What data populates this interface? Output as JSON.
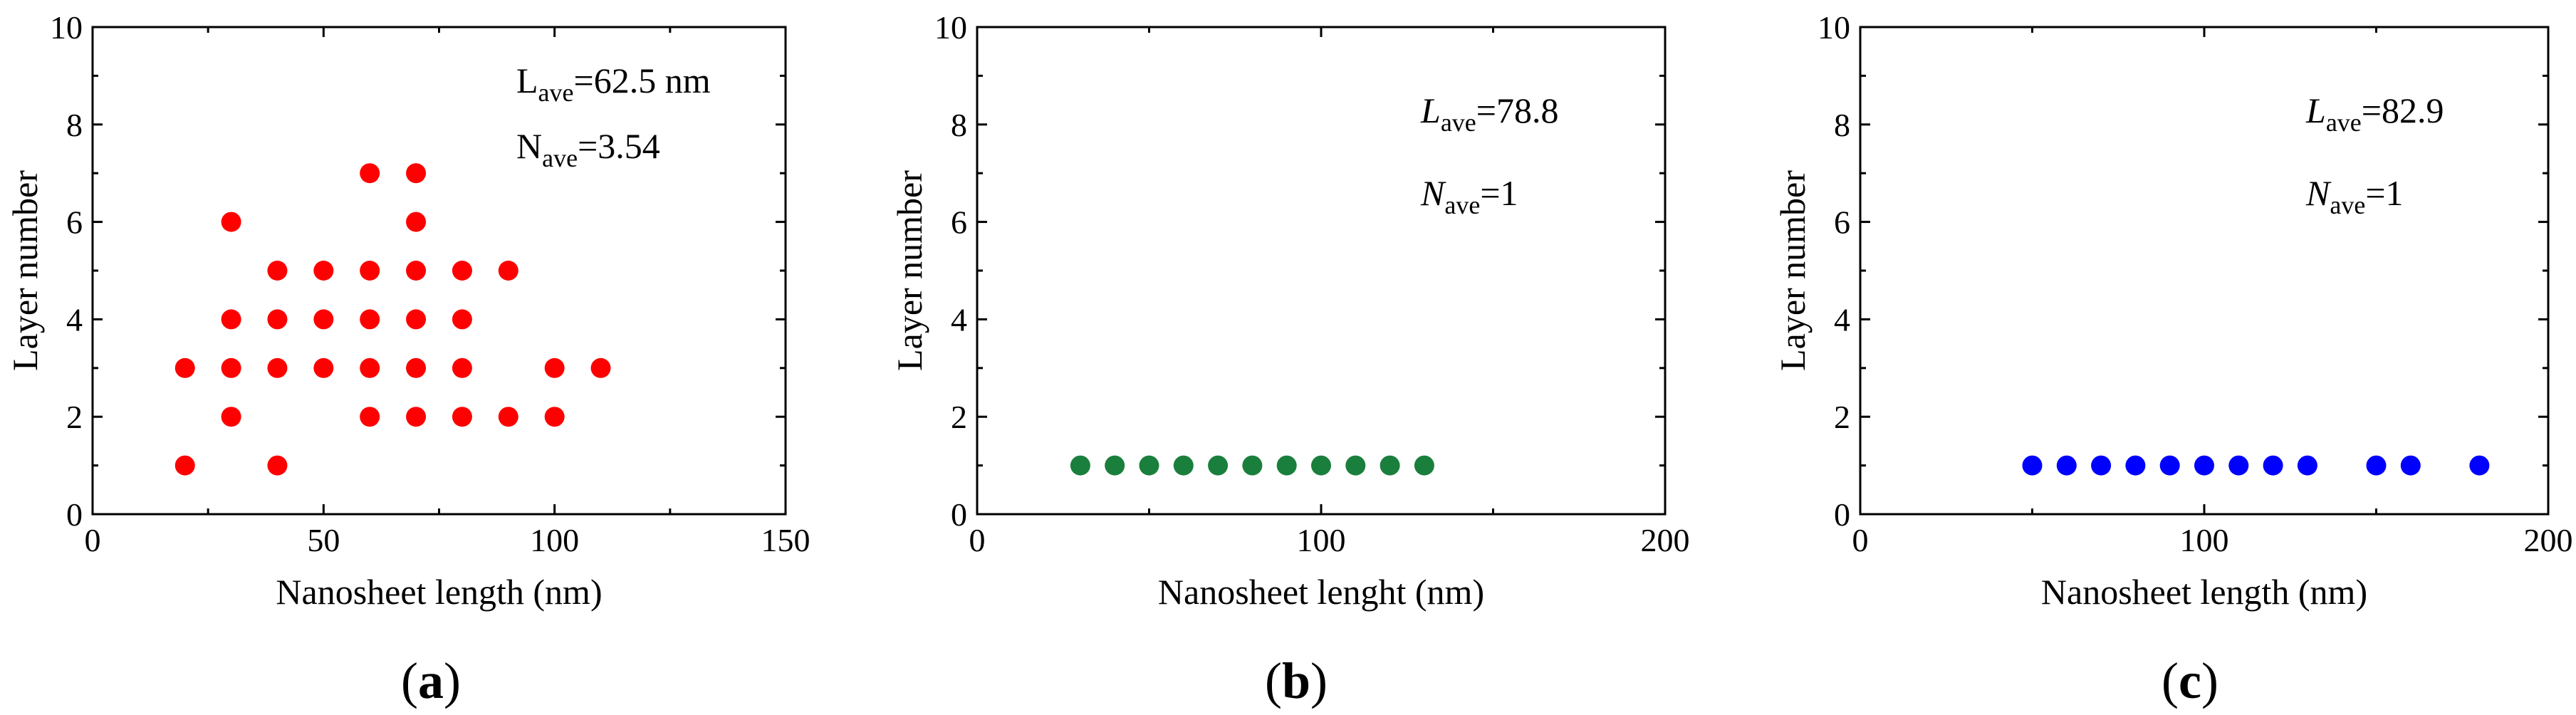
{
  "chart_data": [
    {
      "type": "scatter",
      "panel_label": "a",
      "xlabel": "Nanosheet length (nm)",
      "ylabel": "Layer number",
      "xlim": [
        0,
        150
      ],
      "ylim": [
        0,
        10
      ],
      "xticks": [
        0,
        50,
        100,
        150
      ],
      "yticks": [
        0,
        2,
        4,
        6,
        8,
        10
      ],
      "color": "#ff0000",
      "points": [
        [
          20,
          1
        ],
        [
          20,
          3
        ],
        [
          30,
          2
        ],
        [
          30,
          3
        ],
        [
          30,
          4
        ],
        [
          30,
          6
        ],
        [
          40,
          1
        ],
        [
          40,
          3
        ],
        [
          40,
          4
        ],
        [
          40,
          5
        ],
        [
          50,
          3
        ],
        [
          50,
          4
        ],
        [
          50,
          5
        ],
        [
          60,
          2
        ],
        [
          60,
          3
        ],
        [
          60,
          4
        ],
        [
          60,
          5
        ],
        [
          60,
          7
        ],
        [
          70,
          2
        ],
        [
          70,
          3
        ],
        [
          70,
          4
        ],
        [
          70,
          5
        ],
        [
          70,
          6
        ],
        [
          70,
          7
        ],
        [
          80,
          2
        ],
        [
          80,
          3
        ],
        [
          80,
          4
        ],
        [
          80,
          5
        ],
        [
          90,
          2
        ],
        [
          90,
          5
        ],
        [
          100,
          2
        ],
        [
          100,
          3
        ],
        [
          110,
          3
        ]
      ],
      "annotations": [
        {
          "symbol": "L",
          "sub": "ave",
          "value": "=62.5 nm",
          "italic": false
        },
        {
          "symbol": "N",
          "sub": "ave",
          "value": "=3.54",
          "italic": false
        }
      ]
    },
    {
      "type": "scatter",
      "panel_label": "b",
      "xlabel": "Nanosheet lenght (nm)",
      "ylabel": "Layer number",
      "xlim": [
        0,
        200
      ],
      "ylim": [
        0,
        10
      ],
      "xticks": [
        0,
        100,
        200
      ],
      "yticks": [
        0,
        2,
        4,
        6,
        8,
        10
      ],
      "color": "#1a7f3c",
      "points": [
        [
          30,
          1
        ],
        [
          40,
          1
        ],
        [
          50,
          1
        ],
        [
          60,
          1
        ],
        [
          70,
          1
        ],
        [
          80,
          1
        ],
        [
          90,
          1
        ],
        [
          100,
          1
        ],
        [
          110,
          1
        ],
        [
          120,
          1
        ],
        [
          130,
          1
        ]
      ],
      "annotations": [
        {
          "symbol": "L",
          "sub": "ave",
          "value": "=78.8",
          "italic": true
        },
        {
          "symbol": "N",
          "sub": "ave",
          "value": "=1",
          "italic": true
        }
      ]
    },
    {
      "type": "scatter",
      "panel_label": "c",
      "xlabel": "Nanosheet length (nm)",
      "ylabel": "Layer number",
      "xlim": [
        0,
        200
      ],
      "ylim": [
        0,
        10
      ],
      "xticks": [
        0,
        100,
        200
      ],
      "yticks": [
        0,
        2,
        4,
        6,
        8,
        10
      ],
      "color": "#0000ff",
      "points": [
        [
          50,
          1
        ],
        [
          60,
          1
        ],
        [
          70,
          1
        ],
        [
          80,
          1
        ],
        [
          90,
          1
        ],
        [
          100,
          1
        ],
        [
          110,
          1
        ],
        [
          120,
          1
        ],
        [
          130,
          1
        ],
        [
          150,
          1
        ],
        [
          160,
          1
        ],
        [
          180,
          1
        ]
      ],
      "annotations": [
        {
          "symbol": "L",
          "sub": "ave",
          "value": "=82.9",
          "italic": true
        },
        {
          "symbol": "N",
          "sub": "ave",
          "value": "=1",
          "italic": true
        }
      ]
    }
  ]
}
